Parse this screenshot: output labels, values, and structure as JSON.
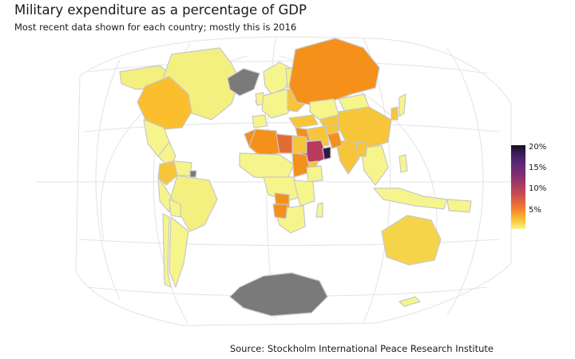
{
  "title": "Military expenditure as a percentage of GDP",
  "subtitle": "Most recent data shown for each country; mostly this is 2016",
  "caption": "Source: Stockholm International Peace Research Institute",
  "legend": {
    "ticks": [
      "20%",
      "15%",
      "10%",
      "5%"
    ],
    "colors": [
      "#141118",
      "#5c2a76",
      "#c84b53",
      "#f47a31",
      "#fbbf2e",
      "#f6f58c"
    ]
  },
  "colors": {
    "no_data": "#7a7a7a",
    "ocean": "#ffffff",
    "border": "#c8c8c8",
    "graticule": "#e3e3e3"
  }
}
